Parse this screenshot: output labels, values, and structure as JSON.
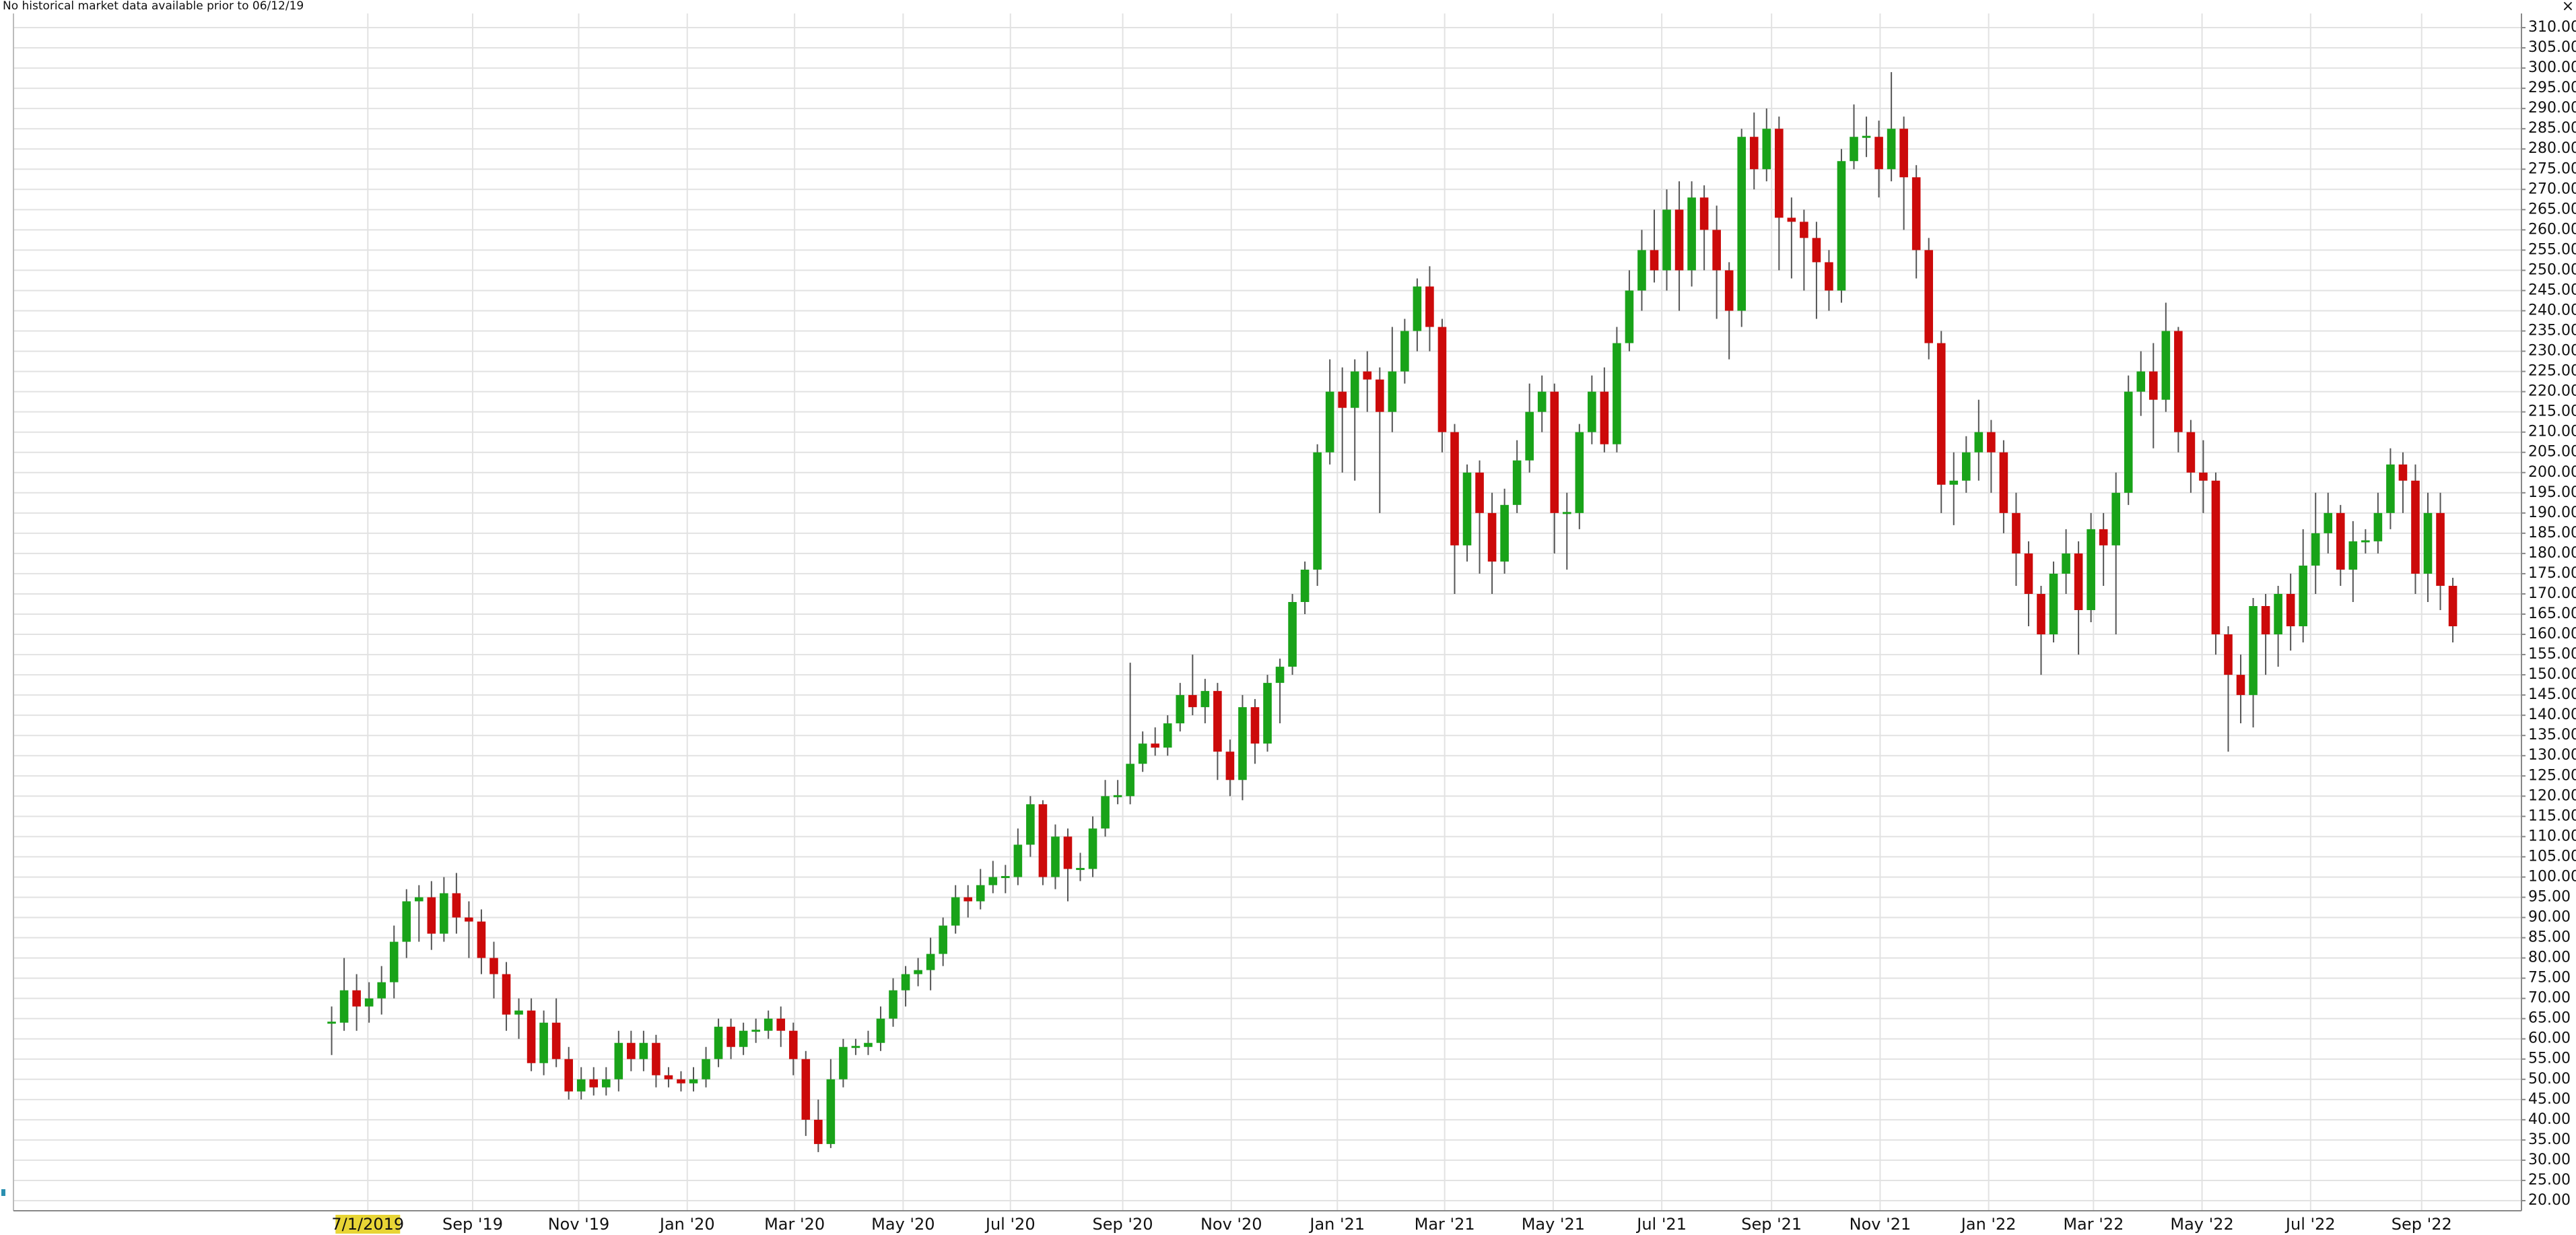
{
  "toolbar": {
    "close": "×"
  },
  "chart_data": {
    "type": "candlestick",
    "annotation": "No historical market data available prior to 06/12/19",
    "up_color": "#19a319",
    "down_color": "#cc0a0a",
    "grid": true,
    "ylim": [
      17.5,
      313.5
    ],
    "xlim": [
      -25.5,
      175.5
    ],
    "yticks": [
      {
        "value": 20,
        "label": "20.00"
      },
      {
        "value": 25,
        "label": "25.00"
      },
      {
        "value": 30,
        "label": "30.00"
      },
      {
        "value": 35,
        "label": "35.00"
      },
      {
        "value": 40,
        "label": "40.00"
      },
      {
        "value": 45,
        "label": "45.00"
      },
      {
        "value": 50,
        "label": "50.00"
      },
      {
        "value": 55,
        "label": "55.00"
      },
      {
        "value": 60,
        "label": "60.00"
      },
      {
        "value": 65,
        "label": "65.00"
      },
      {
        "value": 70,
        "label": "70.00"
      },
      {
        "value": 75,
        "label": "75.00"
      },
      {
        "value": 80,
        "label": "80.00"
      },
      {
        "value": 85,
        "label": "85.00"
      },
      {
        "value": 90,
        "label": "90.00"
      },
      {
        "value": 95,
        "label": "95.00"
      },
      {
        "value": 100,
        "label": "100.00"
      },
      {
        "value": 105,
        "label": "105.00"
      },
      {
        "value": 110,
        "label": "110.00"
      },
      {
        "value": 115,
        "label": "115.00"
      },
      {
        "value": 120,
        "label": "120.00"
      },
      {
        "value": 125,
        "label": "125.00"
      },
      {
        "value": 130,
        "label": "130.00"
      },
      {
        "value": 135,
        "label": "135.00"
      },
      {
        "value": 140,
        "label": "140.00"
      },
      {
        "value": 145,
        "label": "145.00"
      },
      {
        "value": 150,
        "label": "150.00"
      },
      {
        "value": 155,
        "label": "155.00"
      },
      {
        "value": 160,
        "label": "160.00"
      },
      {
        "value": 165,
        "label": "165.00"
      },
      {
        "value": 170,
        "label": "170.00"
      },
      {
        "value": 175,
        "label": "175.00"
      },
      {
        "value": 180,
        "label": "180.00"
      },
      {
        "value": 185,
        "label": "185.00"
      },
      {
        "value": 190,
        "label": "190.00"
      },
      {
        "value": 195,
        "label": "195.00"
      },
      {
        "value": 200,
        "label": "200.00"
      },
      {
        "value": 205,
        "label": "205.00"
      },
      {
        "value": 210,
        "label": "210.00"
      },
      {
        "value": 215,
        "label": "215.00"
      },
      {
        "value": 220,
        "label": "220.00"
      },
      {
        "value": 225,
        "label": "225.00"
      },
      {
        "value": 230,
        "label": "230.00"
      },
      {
        "value": 235,
        "label": "235.00"
      },
      {
        "value": 240,
        "label": "240.00"
      },
      {
        "value": 245,
        "label": "245.00"
      },
      {
        "value": 250,
        "label": "250.00"
      },
      {
        "value": 255,
        "label": "255.00"
      },
      {
        "value": 260,
        "label": "260.00"
      },
      {
        "value": 265,
        "label": "265.00"
      },
      {
        "value": 270,
        "label": "270.00"
      },
      {
        "value": 275,
        "label": "275.00"
      },
      {
        "value": 280,
        "label": "280.00"
      },
      {
        "value": 285,
        "label": "285.00"
      },
      {
        "value": 290,
        "label": "290.00"
      },
      {
        "value": 295,
        "label": "295.00"
      },
      {
        "value": 300,
        "label": "300.00"
      },
      {
        "value": 305,
        "label": "305.00"
      },
      {
        "value": 310,
        "label": "310.00"
      }
    ],
    "xticks": [
      {
        "value": 2.9,
        "label": "7/1/2019"
      },
      {
        "value": 11.3,
        "label": "Sep '19"
      },
      {
        "value": 19.8,
        "label": "Nov '19"
      },
      {
        "value": 28.5,
        "label": "Jan '20"
      },
      {
        "value": 37.1,
        "label": "Mar '20"
      },
      {
        "value": 45.8,
        "label": "May '20"
      },
      {
        "value": 54.4,
        "label": "Jul '20"
      },
      {
        "value": 63.4,
        "label": "Sep '20"
      },
      {
        "value": 72.1,
        "label": "Nov '20"
      },
      {
        "value": 80.6,
        "label": "Jan '21"
      },
      {
        "value": 89.2,
        "label": "Mar '21"
      },
      {
        "value": 97.9,
        "label": "May '21"
      },
      {
        "value": 106.6,
        "label": "Jul '21"
      },
      {
        "value": 115.4,
        "label": "Sep '21"
      },
      {
        "value": 124.1,
        "label": "Nov '21"
      },
      {
        "value": 132.8,
        "label": "Jan '22"
      },
      {
        "value": 141.2,
        "label": "Mar '22"
      },
      {
        "value": 149.9,
        "label": "May '22"
      },
      {
        "value": 158.6,
        "label": "Jul '22"
      },
      {
        "value": 167.5,
        "label": "Sep '22"
      }
    ],
    "open": [
      64,
      64,
      72,
      68,
      70,
      74,
      84,
      94,
      95,
      86,
      96,
      90,
      89,
      80,
      76,
      66,
      67,
      54,
      64,
      55,
      47,
      50,
      48,
      50,
      59,
      55,
      59,
      51,
      50,
      49,
      50,
      55,
      63,
      58,
      62,
      62,
      65,
      62,
      55,
      40,
      34,
      50,
      58,
      58,
      59,
      65,
      72,
      76,
      77,
      81,
      88,
      95,
      94,
      98,
      100,
      100,
      108,
      118,
      100,
      110,
      102,
      102,
      112,
      120,
      120,
      128,
      133,
      132,
      138,
      145,
      142,
      146,
      131,
      124,
      142,
      133,
      148,
      152,
      168,
      176,
      205,
      220,
      216,
      225,
      223,
      215,
      225,
      235,
      246,
      236,
      210,
      182,
      200,
      190,
      178,
      192,
      203,
      215,
      220,
      190,
      190,
      210,
      220,
      207,
      232,
      245,
      255,
      250,
      265,
      250,
      268,
      260,
      250,
      240,
      283,
      275,
      285,
      263,
      262,
      258,
      252,
      245,
      277,
      283,
      283,
      275,
      285,
      273,
      255,
      232,
      197,
      198,
      205,
      210,
      205,
      190,
      180,
      170,
      160,
      175,
      180,
      166,
      186,
      182,
      195,
      220,
      225,
      218,
      235,
      210,
      200,
      198,
      160,
      150,
      145,
      167,
      160,
      170,
      162,
      177,
      185,
      190,
      176,
      183,
      183,
      190,
      202,
      198,
      175,
      190,
      172
    ],
    "high": [
      68,
      80,
      76,
      74,
      78,
      88,
      97,
      98,
      99,
      100,
      101,
      94,
      92,
      84,
      79,
      70,
      70,
      67,
      70,
      58,
      53,
      53,
      53,
      62,
      62,
      62,
      61,
      53,
      52,
      53,
      58,
      65,
      65,
      64,
      65,
      67,
      68,
      64,
      57,
      45,
      55,
      60,
      60,
      62,
      68,
      75,
      78,
      80,
      85,
      90,
      98,
      98,
      102,
      104,
      103,
      112,
      120,
      119,
      113,
      112,
      106,
      115,
      124,
      124,
      153,
      136,
      137,
      140,
      148,
      155,
      149,
      148,
      134,
      145,
      144,
      150,
      154,
      170,
      178,
      207,
      228,
      226,
      228,
      230,
      226,
      236,
      238,
      248,
      251,
      238,
      212,
      202,
      203,
      195,
      196,
      208,
      222,
      224,
      222,
      195,
      212,
      224,
      226,
      236,
      250,
      260,
      265,
      270,
      272,
      272,
      271,
      266,
      252,
      285,
      289,
      290,
      288,
      268,
      265,
      262,
      255,
      280,
      291,
      288,
      287,
      299,
      288,
      276,
      258,
      235,
      205,
      209,
      218,
      213,
      208,
      195,
      183,
      172,
      178,
      186,
      183,
      190,
      190,
      200,
      224,
      230,
      232,
      242,
      236,
      213,
      208,
      200,
      162,
      155,
      169,
      170,
      172,
      175,
      186,
      195,
      195,
      192,
      188,
      186,
      195,
      206,
      205,
      202,
      195,
      195,
      174
    ],
    "low": [
      56,
      62,
      62,
      64,
      66,
      70,
      80,
      84,
      82,
      84,
      86,
      80,
      76,
      70,
      62,
      60,
      52,
      51,
      53,
      45,
      45,
      46,
      46,
      47,
      52,
      52,
      48,
      48,
      47,
      47,
      48,
      53,
      55,
      56,
      59,
      60,
      58,
      51,
      36,
      32,
      33,
      48,
      56,
      56,
      57,
      63,
      68,
      73,
      72,
      78,
      86,
      90,
      92,
      96,
      96,
      98,
      105,
      98,
      97,
      94,
      99,
      100,
      110,
      118,
      118,
      126,
      130,
      130,
      136,
      140,
      138,
      124,
      120,
      119,
      128,
      131,
      138,
      150,
      165,
      172,
      202,
      200,
      198,
      215,
      190,
      210,
      222,
      230,
      230,
      205,
      170,
      178,
      175,
      170,
      175,
      190,
      200,
      210,
      180,
      176,
      186,
      207,
      205,
      205,
      230,
      240,
      247,
      245,
      240,
      246,
      250,
      238,
      228,
      236,
      270,
      272,
      250,
      248,
      245,
      238,
      240,
      242,
      275,
      278,
      268,
      272,
      260,
      248,
      228,
      190,
      187,
      195,
      198,
      195,
      185,
      172,
      162,
      150,
      158,
      170,
      155,
      163,
      172,
      160,
      192,
      214,
      206,
      215,
      205,
      195,
      190,
      155,
      131,
      138,
      137,
      150,
      152,
      156,
      158,
      170,
      180,
      172,
      168,
      180,
      180,
      186,
      190,
      170,
      168,
      166,
      158
    ],
    "close": [
      64,
      72,
      68,
      70,
      74,
      84,
      94,
      95,
      86,
      96,
      90,
      89,
      80,
      76,
      66,
      67,
      54,
      64,
      55,
      47,
      50,
      48,
      50,
      59,
      55,
      59,
      51,
      50,
      49,
      50,
      55,
      63,
      58,
      62,
      62,
      65,
      62,
      55,
      40,
      34,
      50,
      58,
      58,
      59,
      65,
      72,
      76,
      77,
      81,
      88,
      95,
      94,
      98,
      100,
      100,
      108,
      118,
      100,
      110,
      102,
      102,
      112,
      120,
      120,
      128,
      133,
      132,
      138,
      145,
      142,
      146,
      131,
      124,
      142,
      133,
      148,
      152,
      168,
      176,
      205,
      220,
      216,
      225,
      223,
      215,
      225,
      235,
      246,
      236,
      210,
      182,
      200,
      190,
      178,
      192,
      203,
      215,
      220,
      190,
      190,
      210,
      220,
      207,
      232,
      245,
      255,
      250,
      265,
      250,
      268,
      260,
      250,
      240,
      283,
      275,
      285,
      263,
      262,
      258,
      252,
      245,
      277,
      283,
      283,
      275,
      285,
      273,
      255,
      232,
      197,
      198,
      205,
      210,
      205,
      190,
      180,
      170,
      160,
      175,
      180,
      166,
      186,
      182,
      195,
      220,
      225,
      218,
      235,
      210,
      200,
      198,
      160,
      150,
      145,
      167,
      160,
      170,
      162,
      177,
      185,
      190,
      176,
      183,
      183,
      190,
      202,
      198,
      175,
      190,
      172,
      162
    ]
  }
}
